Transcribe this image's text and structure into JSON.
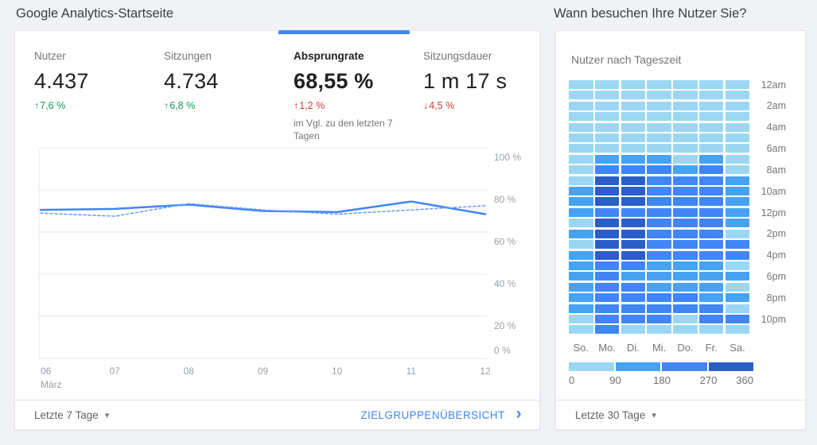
{
  "colors": {
    "accent_blue": "#4285f4",
    "positive_green": "#0f9d58",
    "negative_red": "#d23f31",
    "line_current": "#4285f4",
    "line_previous": "#6fa0f2",
    "grid_line": "#e8e8e8",
    "heat_levels": [
      "#9bd7f2",
      "#47a2f1",
      "#4285f4",
      "#2b5ec9"
    ]
  },
  "icons": {
    "arrow_up": "↑",
    "arrow_down": "↓",
    "dropdown_caret": "▾",
    "chevron_right": "›"
  },
  "left_panel": {
    "title": "Google Analytics-Startseite",
    "metrics": [
      {
        "label": "Nutzer",
        "value": "4.437",
        "delta": "7,6 %",
        "arrow": "up",
        "trend": "positive",
        "selected": false
      },
      {
        "label": "Sitzungen",
        "value": "4.734",
        "delta": "6,8 %",
        "arrow": "up",
        "trend": "positive",
        "selected": false
      },
      {
        "label": "Absprungrate",
        "value": "68,55 %",
        "delta": "1,2 %",
        "arrow": "up",
        "trend": "negative",
        "selected": true,
        "note": "im Vgl. zu den letzten 7 Tagen"
      },
      {
        "label": "Sitzungsdauer",
        "value": "1 m 17 s",
        "delta": "4,5 %",
        "arrow": "down",
        "trend": "negative",
        "selected": false
      }
    ],
    "chart_data": {
      "type": "line",
      "x": [
        "06",
        "07",
        "08",
        "09",
        "10",
        "11",
        "12"
      ],
      "x_month_label": "März",
      "series": [
        {
          "name": "current",
          "style": "solid",
          "values": [
            70.5,
            71,
            73,
            70,
            69.5,
            74.5,
            68.5
          ]
        },
        {
          "name": "previous",
          "style": "dashed",
          "values": [
            69,
            67.5,
            73.5,
            70.5,
            68.5,
            70.5,
            72.5
          ]
        }
      ],
      "ylim": [
        0,
        100
      ],
      "yticks": [
        100,
        80,
        60,
        40,
        20,
        0
      ],
      "ytick_suffix": " %",
      "grid": "horizontal",
      "legend_position": "none"
    },
    "footer": {
      "range_label": "Letzte 7 Tage",
      "link_label": "ZIELGRUPPENÜBERSICHT"
    }
  },
  "right_panel": {
    "title": "Wann besuchen Ihre Nutzer Sie?",
    "subtitle": "Nutzer nach Tageszeit",
    "chart_data": {
      "type": "heatmap",
      "columns": [
        "So.",
        "Mo.",
        "Di.",
        "Mi.",
        "Do.",
        "Fr.",
        "Sa."
      ],
      "row_labels": [
        "12am",
        "2am",
        "4am",
        "6am",
        "8am",
        "10am",
        "12pm",
        "2pm",
        "4pm",
        "6pm",
        "8pm",
        "10pm"
      ],
      "rows": 24,
      "level_matrix": [
        [
          1,
          1,
          1,
          1,
          1,
          1,
          1
        ],
        [
          1,
          1,
          1,
          1,
          1,
          1,
          1
        ],
        [
          1,
          1,
          1,
          1,
          1,
          1,
          1
        ],
        [
          1,
          1,
          1,
          1,
          1,
          1,
          1
        ],
        [
          1,
          1,
          1,
          1,
          1,
          1,
          1
        ],
        [
          1,
          1,
          1,
          1,
          1,
          1,
          1
        ],
        [
          1,
          1,
          1,
          1,
          1,
          1,
          1
        ],
        [
          1,
          2,
          2,
          2,
          1,
          2,
          1
        ],
        [
          1,
          3,
          3,
          3,
          2,
          3,
          1
        ],
        [
          1,
          4,
          4,
          3,
          3,
          3,
          2
        ],
        [
          2,
          4,
          4,
          3,
          3,
          3,
          2
        ],
        [
          2,
          4,
          4,
          3,
          3,
          3,
          2
        ],
        [
          2,
          3,
          3,
          3,
          3,
          3,
          2
        ],
        [
          1,
          4,
          4,
          3,
          3,
          3,
          2
        ],
        [
          2,
          4,
          4,
          3,
          3,
          3,
          1
        ],
        [
          1,
          4,
          4,
          3,
          3,
          3,
          3
        ],
        [
          2,
          4,
          4,
          3,
          3,
          3,
          3
        ],
        [
          2,
          3,
          3,
          2,
          2,
          2,
          1
        ],
        [
          2,
          3,
          2,
          2,
          2,
          2,
          2
        ],
        [
          2,
          3,
          3,
          2,
          2,
          2,
          1
        ],
        [
          2,
          3,
          3,
          3,
          3,
          2,
          2
        ],
        [
          2,
          3,
          3,
          3,
          3,
          3,
          1
        ],
        [
          1,
          3,
          3,
          3,
          1,
          3,
          3
        ],
        [
          1,
          3,
          1,
          1,
          1,
          1,
          1
        ]
      ],
      "legend": {
        "ticks": [
          "0",
          "90",
          "180",
          "270",
          "360"
        ],
        "bucket_ranges": [
          "0–90",
          "90–180",
          "180–270",
          "270–360"
        ]
      }
    },
    "footer": {
      "range_label": "Letzte 30 Tage"
    }
  }
}
